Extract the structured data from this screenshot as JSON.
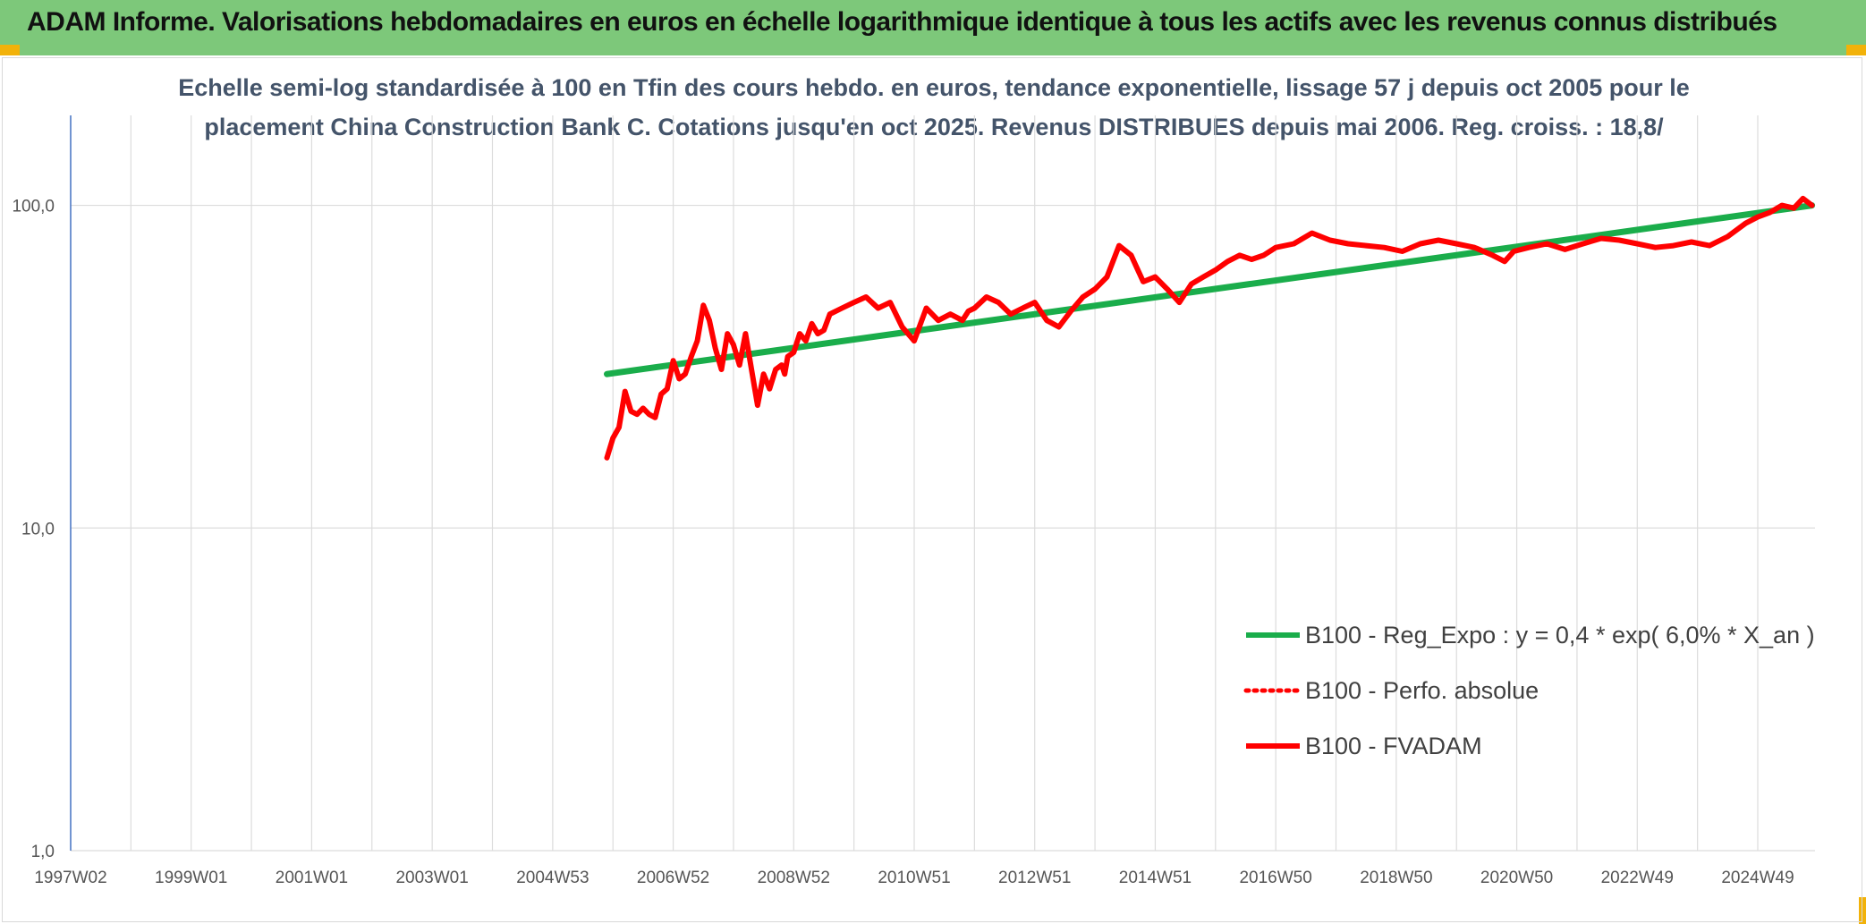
{
  "header": {
    "title": "ADAM Informe. Valorisations hebdomadaires en euros en échelle logarithmique identique à tous les actifs avec les revenus connus distribués"
  },
  "colors": {
    "header_bg": "#7dc87a",
    "corner_accent": "#f2b20a",
    "trend": "#1aad4b",
    "series": "#ff0000",
    "title": "#44546a"
  },
  "chart_data": {
    "type": "line",
    "title_lines": [
      "Echelle semi-log standardisée à 100 en Tfin des cours hebdo. en euros, tendance exponentielle, lissage 57 j depuis oct 2005 pour le",
      "placement China Construction Bank C. Cotations jusqu'en oct 2025. Revenus DISTRIBUES depuis mai 2006. Reg. croiss. : 18,8/"
    ],
    "y_scale": "log",
    "ylim": [
      1,
      190
    ],
    "xlim": [
      1997.0,
      2025.95
    ],
    "grid": true,
    "legend_position": "right",
    "y_ticks": [
      {
        "value": 1,
        "label": "1,0"
      },
      {
        "value": 10,
        "label": "10,0"
      },
      {
        "value": 100,
        "label": "100,0"
      }
    ],
    "x_ticks": [
      {
        "value": 1997.0,
        "label": "1997W02"
      },
      {
        "value": 1999.0,
        "label": "1999W01"
      },
      {
        "value": 2001.0,
        "label": "2001W01"
      },
      {
        "value": 2003.0,
        "label": "2003W01"
      },
      {
        "value": 2005.0,
        "label": "2004W53"
      },
      {
        "value": 2007.0,
        "label": "2006W52"
      },
      {
        "value": 2009.0,
        "label": "2008W52"
      },
      {
        "value": 2011.0,
        "label": "2010W51"
      },
      {
        "value": 2013.0,
        "label": "2012W51"
      },
      {
        "value": 2015.0,
        "label": "2014W51"
      },
      {
        "value": 2017.0,
        "label": "2016W50"
      },
      {
        "value": 2019.0,
        "label": "2018W50"
      },
      {
        "value": 2021.0,
        "label": "2020W50"
      },
      {
        "value": 2023.0,
        "label": "2022W49"
      },
      {
        "value": 2025.0,
        "label": "2024W49"
      }
    ],
    "minor_gridlines": [
      1998.0,
      2000.0,
      2002.0,
      2004.0,
      2006.0,
      2008.0,
      2010.0,
      2012.0,
      2014.0,
      2016.0,
      2018.0,
      2020.0,
      2022.0,
      2024.0
    ],
    "legend": [
      {
        "label": "B100 - Reg_Expo : y = 0,4 * exp( 6,0% * X_an )",
        "style": "solid",
        "color": "#1aad4b"
      },
      {
        "label": "B100 - Perfo. absolue",
        "style": "dotted",
        "color": "#ff0000"
      },
      {
        "label": "B100 - FVADAM",
        "style": "solid",
        "color": "#ff0000"
      }
    ],
    "series": [
      {
        "name": "B100 - Reg_Expo : y = 0,4 * exp( 6,0% * X_an )",
        "style": "solid",
        "color": "#1aad4b",
        "x": [
          2005.9,
          2025.9
        ],
        "y": [
          30.0,
          100.0
        ]
      },
      {
        "name": "B100 - FVADAM",
        "style": "solid",
        "color": "#ff0000",
        "x": [
          2005.9,
          2006.0,
          2006.1,
          2006.2,
          2006.3,
          2006.4,
          2006.5,
          2006.6,
          2006.7,
          2006.8,
          2006.9,
          2007.0,
          2007.1,
          2007.2,
          2007.3,
          2007.4,
          2007.5,
          2007.6,
          2007.7,
          2007.8,
          2007.9,
          2008.0,
          2008.1,
          2008.2,
          2008.3,
          2008.4,
          2008.5,
          2008.6,
          2008.7,
          2008.8,
          2008.85,
          2008.9,
          2009.0,
          2009.1,
          2009.2,
          2009.3,
          2009.4,
          2009.5,
          2009.6,
          2009.8,
          2010.0,
          2010.2,
          2010.4,
          2010.6,
          2010.8,
          2011.0,
          2011.2,
          2011.4,
          2011.6,
          2011.8,
          2011.9,
          2012.0,
          2012.2,
          2012.4,
          2012.6,
          2012.8,
          2013.0,
          2013.2,
          2013.4,
          2013.6,
          2013.8,
          2014.0,
          2014.2,
          2014.4,
          2014.6,
          2014.8,
          2015.0,
          2015.2,
          2015.4,
          2015.6,
          2015.8,
          2016.0,
          2016.2,
          2016.4,
          2016.6,
          2016.8,
          2017.0,
          2017.3,
          2017.6,
          2017.9,
          2018.2,
          2018.5,
          2018.8,
          2019.1,
          2019.4,
          2019.7,
          2020.0,
          2020.3,
          2020.6,
          2020.8,
          2020.95,
          2021.2,
          2021.5,
          2021.8,
          2022.1,
          2022.4,
          2022.7,
          2023.0,
          2023.3,
          2023.6,
          2023.9,
          2024.2,
          2024.5,
          2024.8,
          2025.0,
          2025.2,
          2025.4,
          2025.6,
          2025.75,
          2025.9
        ],
        "y": [
          16.5,
          19.0,
          20.5,
          26.5,
          23.0,
          22.5,
          23.5,
          22.5,
          22.0,
          26.0,
          27.0,
          33.0,
          29.0,
          30.0,
          34.0,
          38.0,
          49.0,
          44.0,
          36.0,
          31.0,
          40.0,
          37.0,
          32.0,
          40.0,
          31.0,
          24.0,
          30.0,
          27.0,
          31.0,
          32.0,
          30.0,
          34.0,
          35.0,
          40.0,
          38.0,
          43.0,
          40.0,
          41.0,
          46.0,
          48.0,
          50.0,
          52.0,
          48.0,
          50.0,
          42.0,
          38.0,
          48.0,
          44.0,
          46.0,
          44.0,
          47.0,
          48.0,
          52.0,
          50.0,
          46.0,
          48.0,
          50.0,
          44.0,
          42.0,
          47.0,
          52.0,
          55.0,
          60.0,
          75.0,
          70.0,
          58.0,
          60.0,
          55.0,
          50.0,
          57.0,
          60.0,
          63.0,
          67.0,
          70.0,
          68.0,
          70.0,
          74.0,
          76.0,
          82.0,
          78.0,
          76.0,
          75.0,
          74.0,
          72.0,
          76.0,
          78.0,
          76.0,
          74.0,
          70.0,
          67.0,
          72.0,
          74.0,
          76.0,
          73.0,
          76.0,
          79.0,
          78.0,
          76.0,
          74.0,
          75.0,
          77.0,
          75.0,
          80.0,
          88.0,
          92.0,
          95.0,
          100.0,
          98.0,
          105.0,
          100.0
        ]
      }
    ]
  }
}
